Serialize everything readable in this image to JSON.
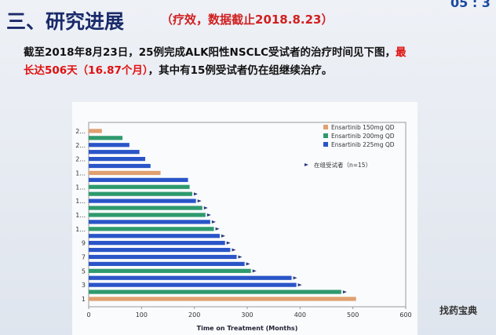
{
  "header": {
    "title": "三、研究进展",
    "note": "（疗效，数据截止2018.8.23）",
    "clock": "05 : 3"
  },
  "body": {
    "line1": "截至2018年8月23日，25例完成ALK阳性NSCLC受试者的治疗时间见下图，",
    "line1_red": "最",
    "line2_red": "长达506天（16.87个月）",
    "line2": "，其中有15例受试者仍在组继续治疗。"
  },
  "watermark": "找药宝典",
  "chart_data": {
    "type": "swimmer",
    "x_label": "Time on Treatment (Months)",
    "categories": [
      "1",
      null,
      "3",
      null,
      "5",
      null,
      "7",
      null,
      "9",
      null,
      "1...",
      null,
      "1...",
      null,
      "1...",
      null,
      "1...",
      null,
      "1...",
      null,
      "2...",
      null,
      "2...",
      null,
      "2..."
    ],
    "series": [
      {
        "name": "Ensartinib 150mg QD",
        "color": "#e0a070",
        "values": [
          506,
          null,
          null,
          null,
          null,
          null,
          null,
          null,
          null,
          null,
          null,
          null,
          null,
          null,
          null,
          null,
          null,
          null,
          136,
          null,
          null,
          null,
          null,
          null,
          25
        ]
      },
      {
        "name": "Ensartinib 200mg QD",
        "color": "#2e9a6e",
        "values": [
          null,
          478,
          null,
          null,
          307,
          null,
          null,
          null,
          null,
          null,
          237,
          null,
          221,
          215,
          null,
          196,
          191,
          null,
          null,
          null,
          null,
          null,
          null,
          64,
          null
        ]
      },
      {
        "name": "Ensartinib 225mg QD",
        "color": "#2a55c8",
        "values": [
          null,
          null,
          393,
          384,
          null,
          295,
          280,
          268,
          258,
          248,
          null,
          230,
          null,
          null,
          203,
          null,
          null,
          188,
          null,
          117,
          107,
          96,
          77,
          null,
          null
        ]
      }
    ],
    "ongoing": [
      false,
      true,
      true,
      true,
      true,
      true,
      true,
      true,
      true,
      true,
      true,
      true,
      true,
      true,
      true,
      true,
      false,
      false,
      false,
      false,
      false,
      false,
      false,
      false,
      false
    ],
    "ongoing_label": "在组受试者（n=15）",
    "xlim": [
      0,
      600
    ],
    "xticks": [
      0,
      100,
      200,
      300,
      400,
      500,
      600
    ]
  }
}
